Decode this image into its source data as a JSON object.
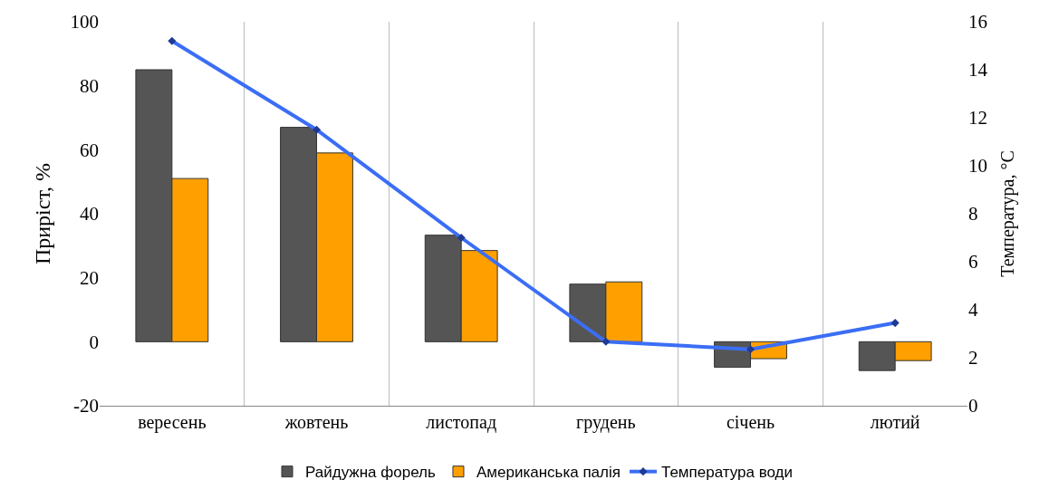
{
  "chart_data": {
    "type": "bar",
    "ylabel": "Приріст, %",
    "y2label": "Температура, °C",
    "categories": [
      "вересень",
      "жовтень",
      "листопад",
      "грудень",
      "січень",
      "лютий"
    ],
    "series": [
      {
        "name": "Райдужна форель",
        "color": "#555555",
        "values": [
          85,
          67,
          33.3,
          18,
          -8,
          -9
        ]
      },
      {
        "name": "Американська палія",
        "color": "#ffa000",
        "values": [
          51,
          59,
          28.5,
          18.7,
          -5.3,
          -5.9
        ]
      },
      {
        "name": "Температура води",
        "color": "#3b6ef5",
        "type": "line",
        "axis": "y2",
        "marker": "diamond",
        "values": [
          15.2,
          11.5,
          7.0,
          2.67,
          2.35,
          3.45
        ]
      }
    ],
    "ylim": [
      -20,
      100
    ],
    "yticks": [
      -20,
      0,
      20,
      40,
      60,
      80,
      100
    ],
    "y2lim": [
      0,
      16
    ],
    "y2ticks": [
      0,
      2,
      4,
      6,
      8,
      10,
      12,
      14,
      16
    ],
    "grid": "x",
    "legend": "bottom"
  }
}
